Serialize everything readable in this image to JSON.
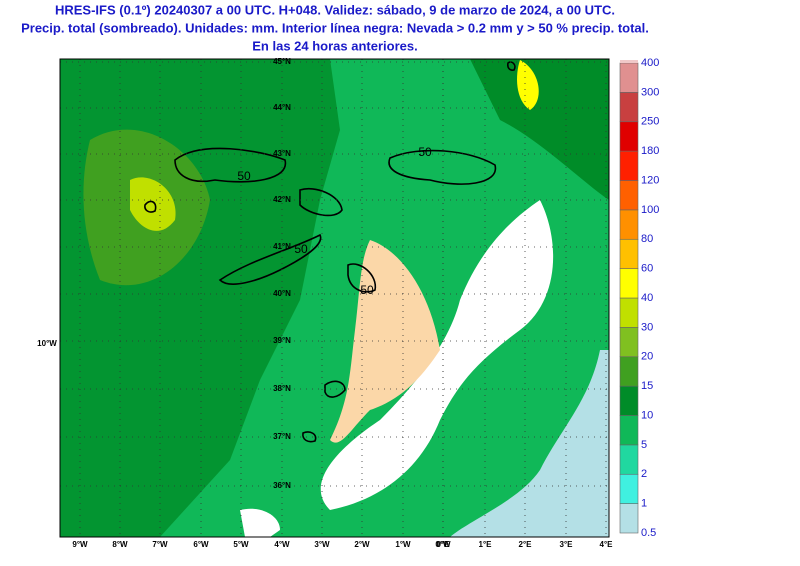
{
  "header": {
    "lines": [
      "HRES-IFS (0.1º) 20240307 a 00 UTC. H+048. Validez: sábado, 9 de marzo de 2024, a 00 UTC.",
      "Precip. total (sombreado). Unidades: mm. Interior línea negra: Nevada > 0.2 mm y > 50 % precip. total.",
      "En las 24 horas anteriores."
    ]
  },
  "map": {
    "latitude_labels": [
      "45°N",
      "44°N",
      "43°N",
      "42°N",
      "41°N",
      "40°N",
      "39°N",
      "38°N",
      "37°N",
      "36°N"
    ],
    "longitude_labels": [
      "9°W",
      "8°W",
      "7°W",
      "6°W",
      "5°W",
      "4°W",
      "3°W",
      "2°W",
      "1°W",
      "0°W",
      "0°E",
      "1°E",
      "2°E",
      "3°E",
      "4°E"
    ],
    "edge_label": "10°W",
    "contour_labels": [
      "50",
      "50",
      "50",
      "50"
    ]
  },
  "colorbar": {
    "labels": [
      "0.5",
      "1",
      "2",
      "5",
      "10",
      "15",
      "20",
      "30",
      "40",
      "60",
      "80",
      "100",
      "120",
      "180",
      "250",
      "300",
      "400"
    ],
    "colors": [
      "#b4e0e6",
      "#40f0e0",
      "#20d8a0",
      "#10b858",
      "#008c28",
      "#40a020",
      "#80c020",
      "#c0e000",
      "#ffff00",
      "#ffc000",
      "#ff9000",
      "#ff6000",
      "#ff2000",
      "#e00000",
      "#c84040",
      "#e09090",
      "#f0c8c8"
    ]
  }
}
